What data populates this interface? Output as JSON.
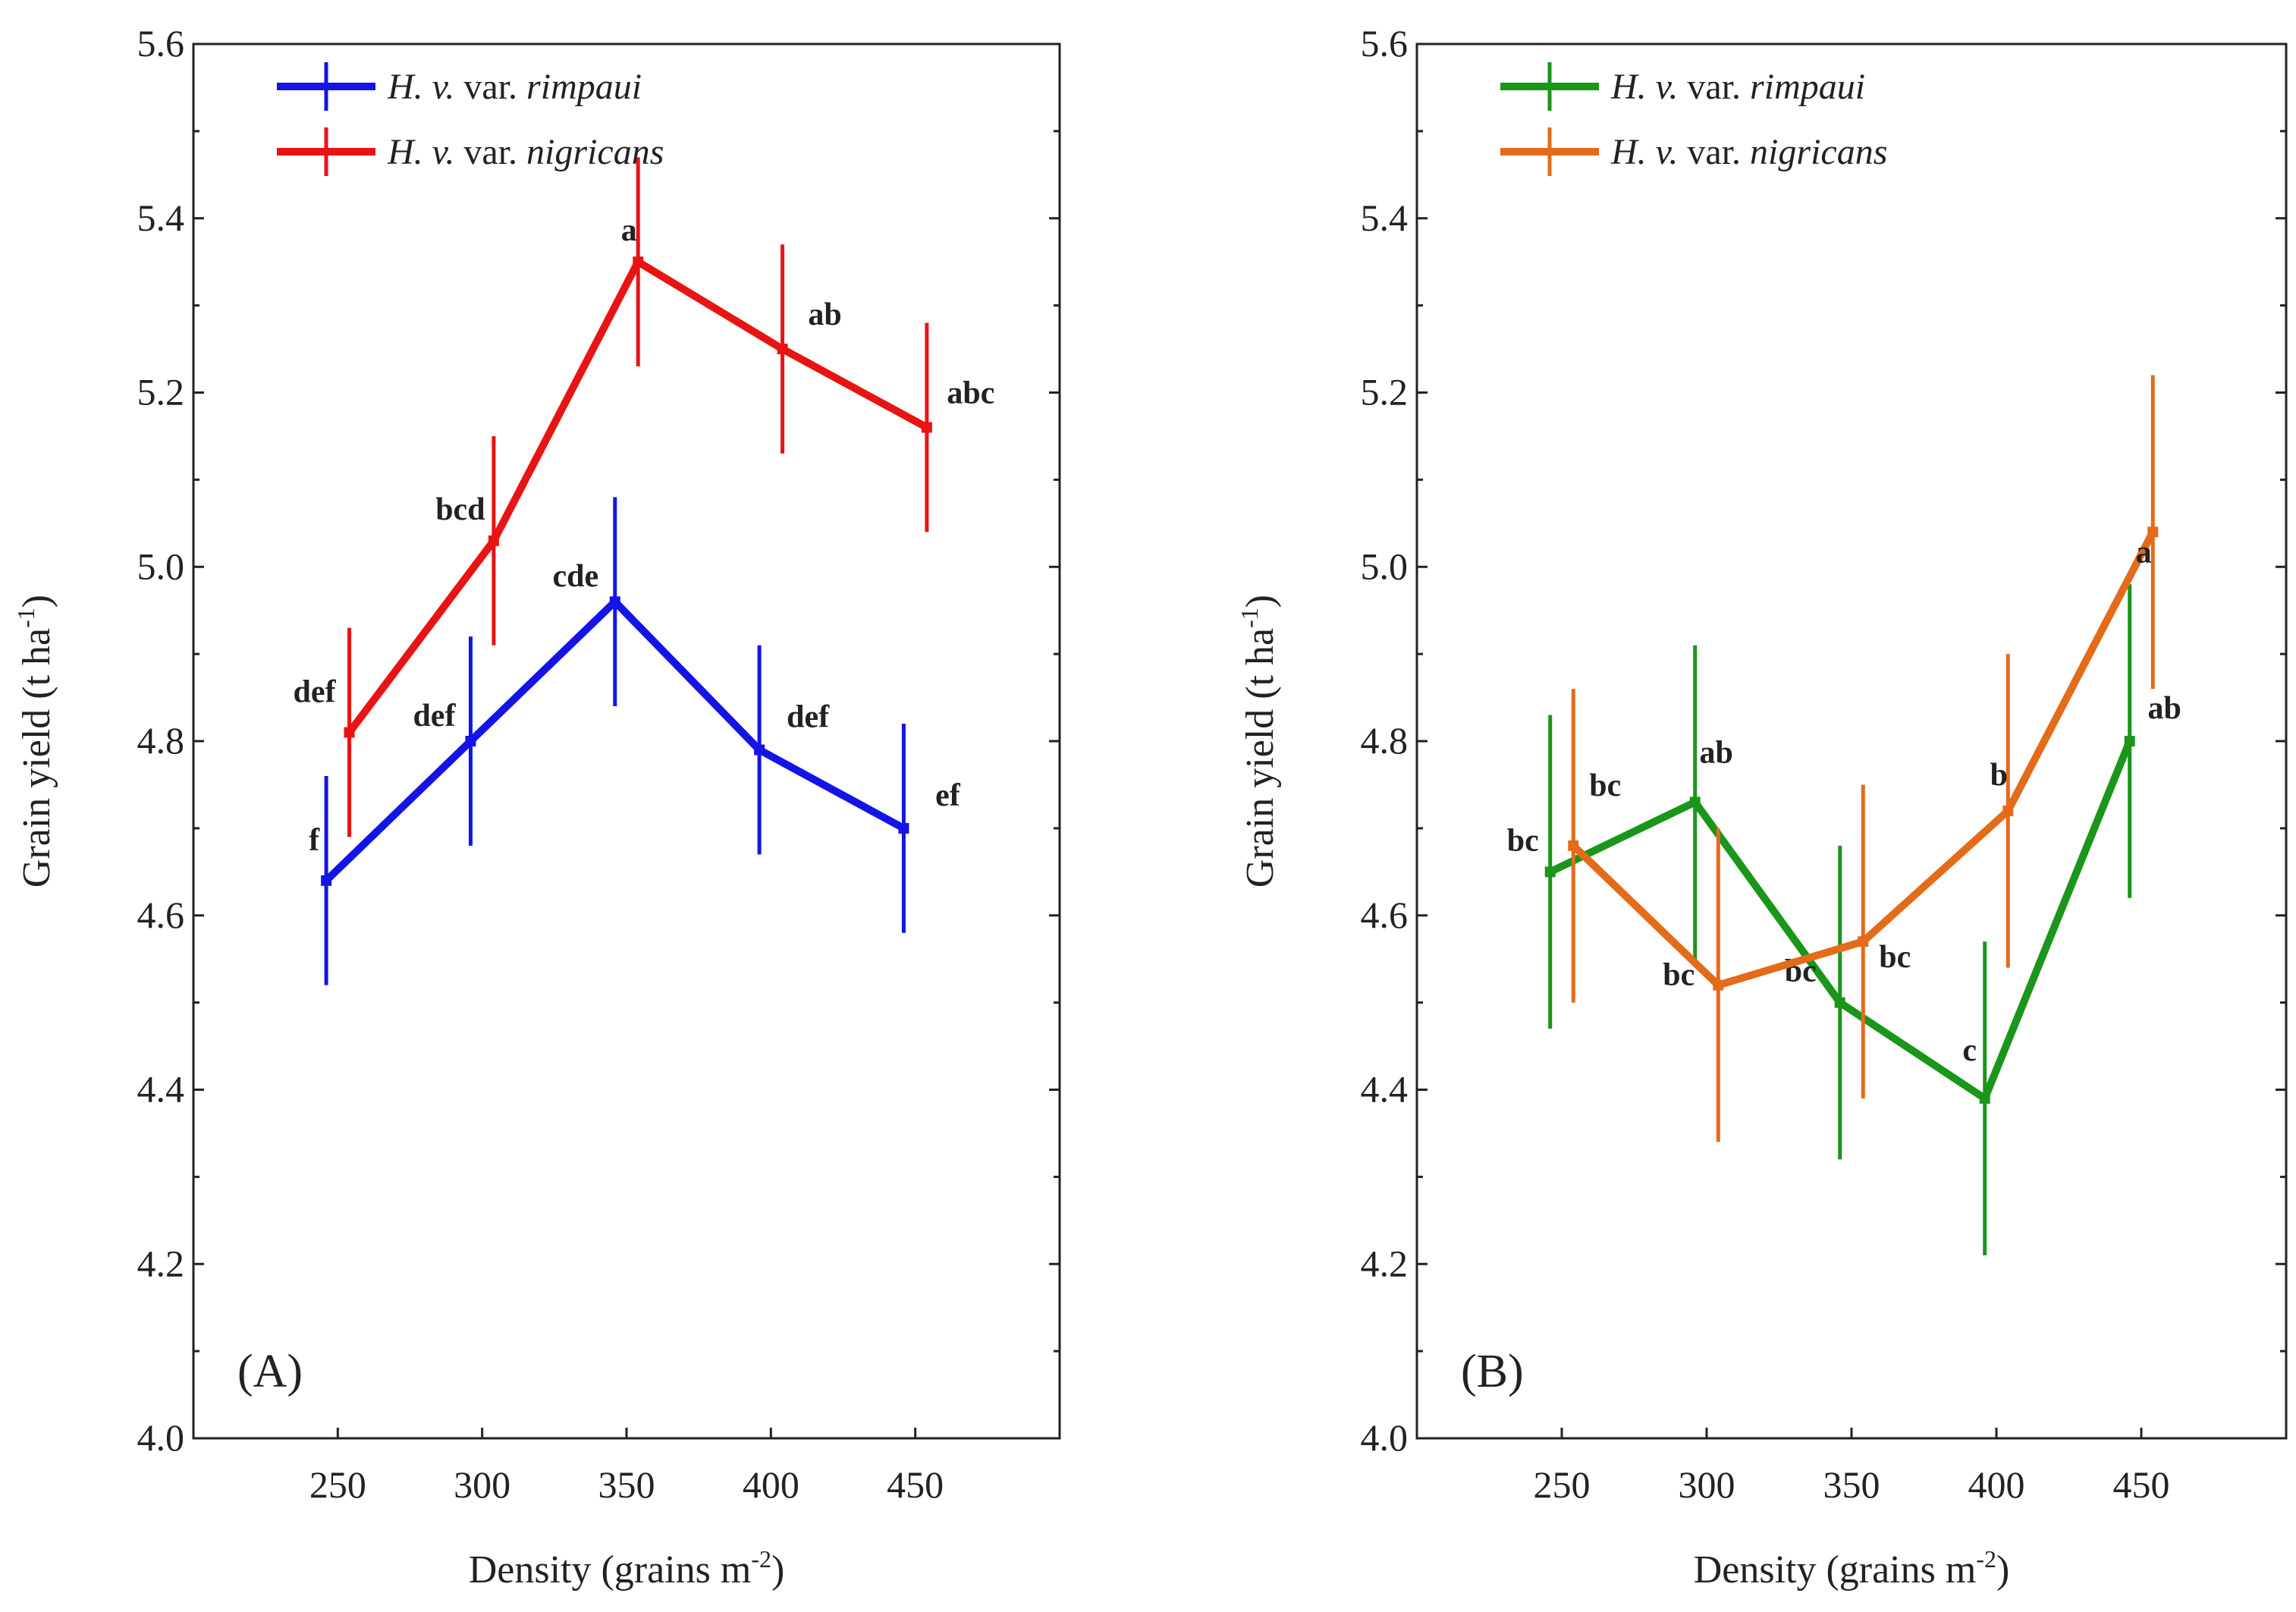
{
  "chart_data": [
    {
      "type": "line",
      "panel_label": "(A)",
      "xlabel_main": "Density (grains m",
      "xlabel_sup": "-2",
      "xlabel_end": ")",
      "ylabel_main": "Grain yield (t ha",
      "ylabel_sup": "-1",
      "ylabel_end": ")",
      "xlim": [
        200,
        500
      ],
      "ylim": [
        4.0,
        5.6
      ],
      "xticks": [
        "250",
        "300",
        "350",
        "400",
        "450"
      ],
      "yticks": [
        "4.0",
        "4.2",
        "4.4",
        "4.6",
        "4.8",
        "5.0",
        "5.2",
        "5.4",
        "5.6"
      ],
      "legend_position": "top-left",
      "series": [
        {
          "name_prefix": "H. v.",
          "name_mid": " var. ",
          "name_var": "rimpaui",
          "color": "#1414e6",
          "x": [
            246,
            296,
            346,
            396,
            446
          ],
          "y": [
            4.64,
            4.8,
            4.96,
            4.79,
            4.7
          ],
          "err": [
            0.12,
            0.12,
            0.12,
            0.12,
            0.12
          ],
          "labels": [
            "f",
            "def",
            "cde",
            "def",
            "ef"
          ]
        },
        {
          "name_prefix": "H. v.",
          "name_mid": " var. ",
          "name_var": "nigricans",
          "color": "#e81414",
          "x": [
            254,
            304,
            354,
            404,
            454
          ],
          "y": [
            4.81,
            5.03,
            5.35,
            5.25,
            5.16
          ],
          "err": [
            0.12,
            0.12,
            0.12,
            0.12,
            0.12
          ],
          "labels": [
            "def",
            "bcd",
            "a",
            "ab",
            "abc"
          ]
        }
      ]
    },
    {
      "type": "line",
      "panel_label": "(B)",
      "xlabel_main": "Density (grains m",
      "xlabel_sup": "-2",
      "xlabel_end": ")",
      "ylabel_main": "Grain yield (t ha",
      "ylabel_sup": "-1",
      "ylabel_end": ")",
      "xlim": [
        200,
        500
      ],
      "ylim": [
        4.0,
        5.6
      ],
      "xticks": [
        "250",
        "300",
        "350",
        "400",
        "450"
      ],
      "yticks": [
        "4.0",
        "4.2",
        "4.4",
        "4.6",
        "4.8",
        "5.0",
        "5.2",
        "5.4",
        "5.6"
      ],
      "legend_position": "top-left",
      "series": [
        {
          "name_prefix": "H. v.",
          "name_mid": " var. ",
          "name_var": "rimpaui",
          "color": "#1a961a",
          "x": [
            246,
            296,
            346,
            396,
            446
          ],
          "y": [
            4.65,
            4.73,
            4.5,
            4.39,
            4.8
          ],
          "err": [
            0.18,
            0.18,
            0.18,
            0.18,
            0.18
          ],
          "labels": [
            "bc",
            "ab",
            "bc",
            "c",
            "ab"
          ]
        },
        {
          "name_prefix": "H. v.",
          "name_mid": " var. ",
          "name_var": "nigricans",
          "color": "#e36b1a",
          "x": [
            254,
            304,
            354,
            404,
            454
          ],
          "y": [
            4.68,
            4.52,
            4.57,
            4.72,
            5.04
          ],
          "err": [
            0.18,
            0.18,
            0.18,
            0.18,
            0.18
          ],
          "labels": [
            "bc",
            "bc",
            "bc",
            "b",
            "a"
          ]
        }
      ]
    }
  ]
}
